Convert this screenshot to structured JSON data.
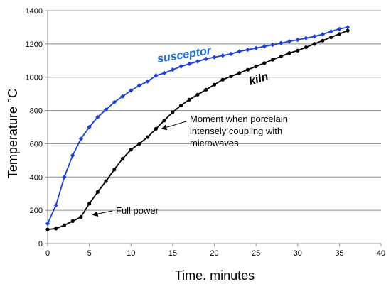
{
  "chart_data": {
    "type": "line",
    "title": "",
    "xlabel": "Time. minutes",
    "ylabel": "Temperature °C",
    "xlim": [
      0,
      40
    ],
    "ylim": [
      0,
      1400
    ],
    "x_ticks": [
      0,
      5,
      10,
      15,
      20,
      25,
      30,
      35,
      40
    ],
    "y_ticks": [
      0,
      200,
      400,
      600,
      800,
      1000,
      1200,
      1400
    ],
    "grid": "horizontal",
    "legend": "none",
    "series": [
      {
        "name": "susceptor",
        "color": "#1a3fe0",
        "label_color": "#1a6fe0",
        "marker": "diamond",
        "x": [
          0,
          1,
          2,
          3,
          4,
          5,
          6,
          7,
          8,
          9,
          10,
          11,
          12,
          13,
          14,
          15,
          16,
          17,
          18,
          19,
          20,
          21,
          22,
          23,
          24,
          25,
          26,
          27,
          28,
          29,
          30,
          31,
          32,
          33,
          34,
          35,
          36
        ],
        "values": [
          120,
          230,
          400,
          530,
          630,
          700,
          760,
          805,
          850,
          885,
          920,
          950,
          975,
          1010,
          1025,
          1045,
          1065,
          1080,
          1095,
          1110,
          1120,
          1130,
          1140,
          1155,
          1165,
          1175,
          1185,
          1195,
          1205,
          1215,
          1225,
          1235,
          1245,
          1258,
          1275,
          1290,
          1300
        ]
      },
      {
        "name": "kiln",
        "color": "#000000",
        "label_color": "#000000",
        "marker": "circle",
        "x": [
          0,
          1,
          2,
          3,
          4,
          5,
          6,
          7,
          8,
          9,
          10,
          11,
          12,
          13,
          14,
          15,
          16,
          17,
          18,
          19,
          20,
          21,
          22,
          23,
          24,
          25,
          26,
          27,
          28,
          29,
          30,
          31,
          32,
          33,
          34,
          35,
          36
        ],
        "values": [
          85,
          90,
          110,
          135,
          160,
          240,
          310,
          375,
          445,
          510,
          565,
          600,
          640,
          690,
          740,
          790,
          830,
          865,
          895,
          925,
          955,
          985,
          1005,
          1025,
          1045,
          1065,
          1085,
          1105,
          1125,
          1145,
          1160,
          1180,
          1200,
          1220,
          1240,
          1260,
          1280
        ]
      }
    ],
    "annotations": [
      {
        "lines": [
          "Full power"
        ],
        "arrow_to": [
          5,
          160
        ]
      },
      {
        "lines": [
          "Moment when porcelain",
          "intensely coupling with",
          "microwaves"
        ],
        "arrow_to": [
          13,
          690
        ]
      }
    ]
  }
}
